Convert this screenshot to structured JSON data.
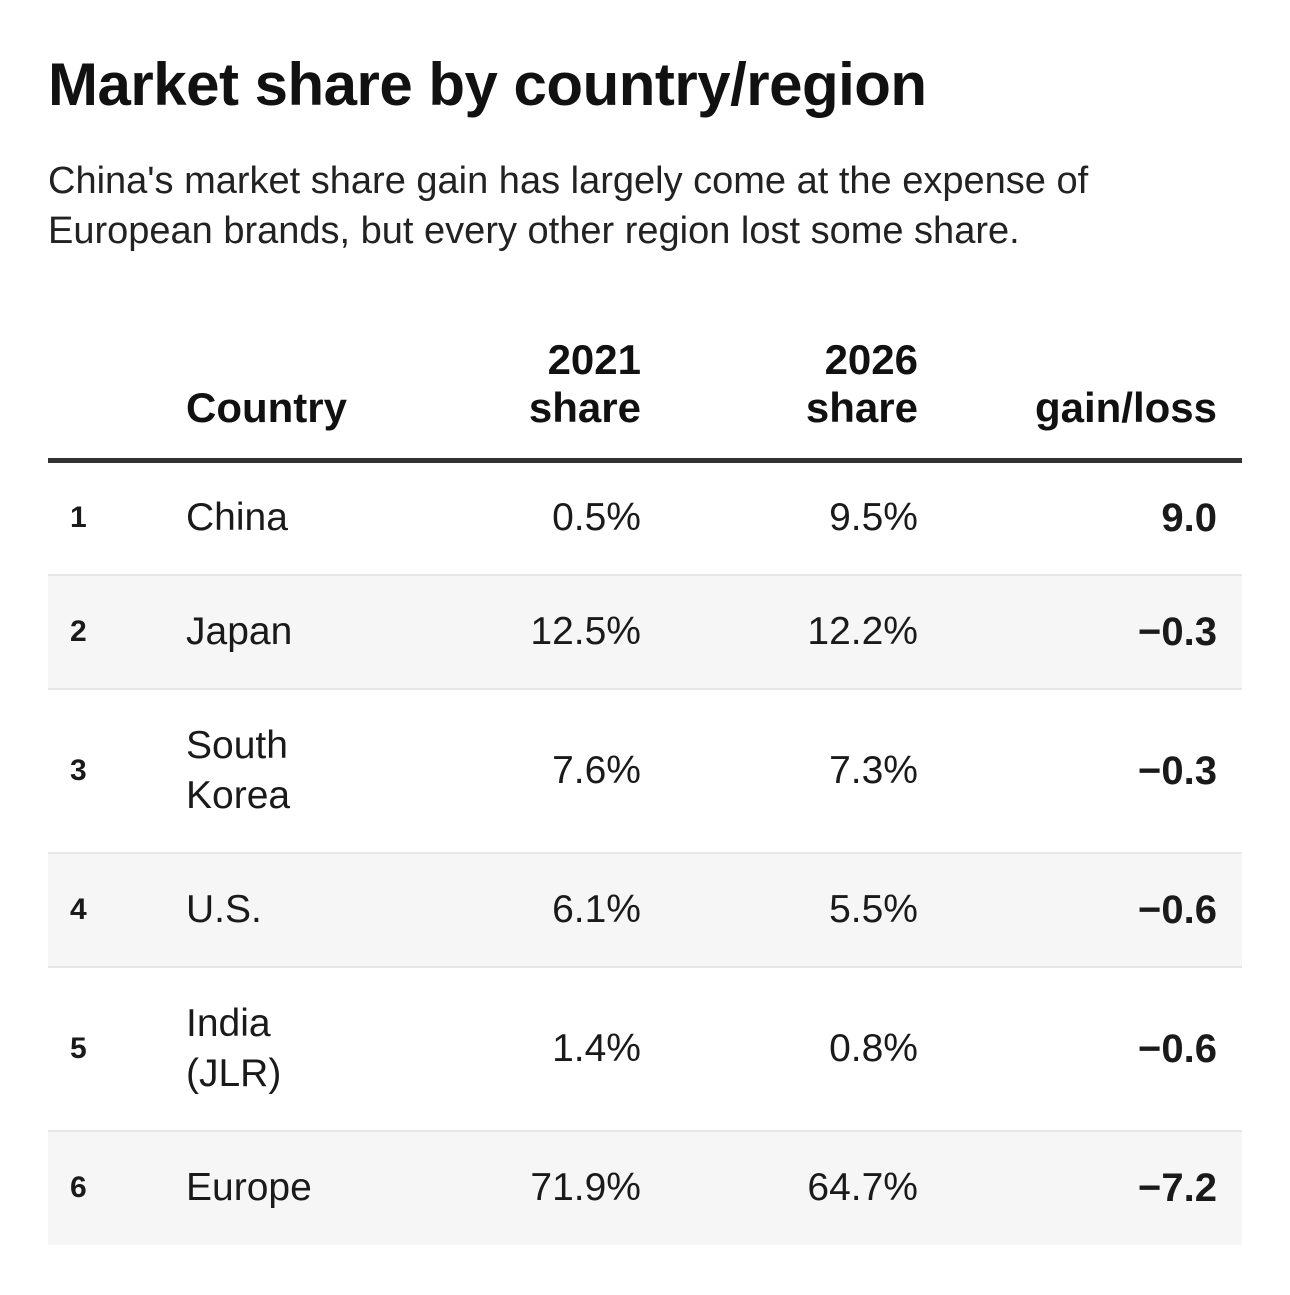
{
  "title": "Market share by country/region",
  "subtitle": "China's market share gain has largely come at the expense of European brands, but every other region lost some share.",
  "chart_data": {
    "type": "table",
    "columns": [
      {
        "key": "rank",
        "label_lines": []
      },
      {
        "key": "country",
        "label_lines": [
          "Country"
        ]
      },
      {
        "key": "share_2021",
        "label_lines": [
          "2021",
          "share"
        ]
      },
      {
        "key": "share_2026",
        "label_lines": [
          "2026",
          "share"
        ]
      },
      {
        "key": "gain_loss",
        "label_lines": [
          "gain/loss"
        ]
      }
    ],
    "rows": [
      {
        "rank": "1",
        "country": "China",
        "share_2021": "0.5%",
        "share_2026": "9.5%",
        "gain_loss": "9.0"
      },
      {
        "rank": "2",
        "country": "Japan",
        "share_2021": "12.5%",
        "share_2026": "12.2%",
        "gain_loss": "−0.3"
      },
      {
        "rank": "3",
        "country": "South Korea",
        "share_2021": "7.6%",
        "share_2026": "7.3%",
        "gain_loss": "−0.3"
      },
      {
        "rank": "4",
        "country": "U.S.",
        "share_2021": "6.1%",
        "share_2026": "5.5%",
        "gain_loss": "−0.6"
      },
      {
        "rank": "5",
        "country": "India (JLR)",
        "share_2021": "1.4%",
        "share_2026": "0.8%",
        "gain_loss": "−0.6"
      },
      {
        "rank": "6",
        "country": "Europe",
        "share_2021": "71.9%",
        "share_2026": "64.7%",
        "gain_loss": "−7.2"
      }
    ]
  }
}
